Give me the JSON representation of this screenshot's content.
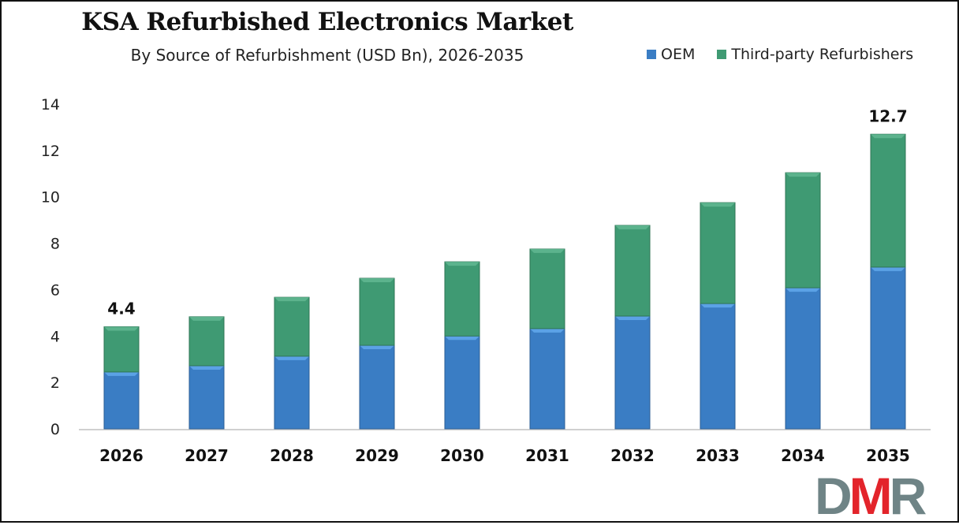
{
  "chart_data": {
    "type": "bar",
    "stacked": true,
    "title": "KSA Refurbished Electronics Market",
    "subtitle": "By Source of Refurbishment (USD Bn), 2026-2035",
    "xlabel": "",
    "ylabel": "",
    "categories": [
      "2026",
      "2027",
      "2028",
      "2029",
      "2030",
      "2031",
      "2032",
      "2033",
      "2034",
      "2035"
    ],
    "series": [
      {
        "name": "OEM",
        "color": "#3a7dc4",
        "values": [
          2.45,
          2.72,
          3.13,
          3.6,
          4.0,
          4.32,
          4.86,
          5.4,
          6.08,
          6.97
        ]
      },
      {
        "name": "Third-party Refurbishers",
        "color": "#3f9a73",
        "values": [
          1.95,
          2.11,
          2.54,
          2.89,
          3.2,
          3.43,
          3.91,
          4.35,
          4.96,
          5.73
        ]
      }
    ],
    "data_labels": [
      {
        "category": "2026",
        "text": "4.4"
      },
      {
        "category": "2035",
        "text": "12.7"
      }
    ],
    "ylim": [
      0,
      14
    ],
    "yticks": [
      "0",
      "2",
      "4",
      "6",
      "8",
      "10",
      "12",
      "14"
    ],
    "grid": false,
    "legend_position": "top-right"
  },
  "logo": {
    "text": "DMR",
    "colors": [
      "#6f8486",
      "#e3242b",
      "#6f8486"
    ]
  }
}
